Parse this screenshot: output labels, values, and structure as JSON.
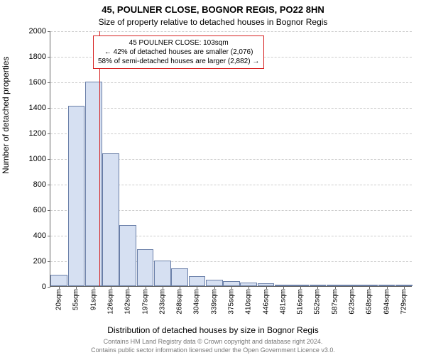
{
  "title": "45, POULNER CLOSE, BOGNOR REGIS, PO22 8HN",
  "subtitle": "Size of property relative to detached houses in Bognor Regis",
  "y_axis_label": "Number of detached properties",
  "x_axis_label": "Distribution of detached houses by size in Bognor Regis",
  "footer1": "Contains HM Land Registry data © Crown copyright and database right 2024.",
  "footer2": "Contains public sector information licensed under the Open Government Licence v3.0.",
  "chart": {
    "type": "histogram",
    "ylim": [
      0,
      2000
    ],
    "ytick_step": 200,
    "bar_fill": "#d6e0f2",
    "bar_stroke": "#6a7fa8",
    "grid_color": "#cccccc",
    "axis_color": "#666666",
    "background": "#ffffff",
    "marker_color": "#d62020",
    "marker_x_value": 103,
    "title_fontsize": 13,
    "subtitle_fontsize": 12,
    "label_fontsize": 12,
    "tick_fontsize": 11,
    "categories": [
      "20sqm",
      "55sqm",
      "91sqm",
      "126sqm",
      "162sqm",
      "197sqm",
      "233sqm",
      "268sqm",
      "304sqm",
      "339sqm",
      "375sqm",
      "410sqm",
      "446sqm",
      "481sqm",
      "516sqm",
      "552sqm",
      "587sqm",
      "623sqm",
      "658sqm",
      "694sqm",
      "729sqm"
    ],
    "values": [
      90,
      1410,
      1600,
      1040,
      480,
      290,
      200,
      140,
      80,
      50,
      40,
      30,
      20,
      10,
      8,
      5,
      5,
      3,
      3,
      2,
      2
    ],
    "annotation": {
      "line1": "45 POULNER CLOSE: 103sqm",
      "line2": "← 42% of detached houses are smaller (2,076)",
      "line3": "58% of semi-detached houses are larger (2,882) →"
    }
  }
}
